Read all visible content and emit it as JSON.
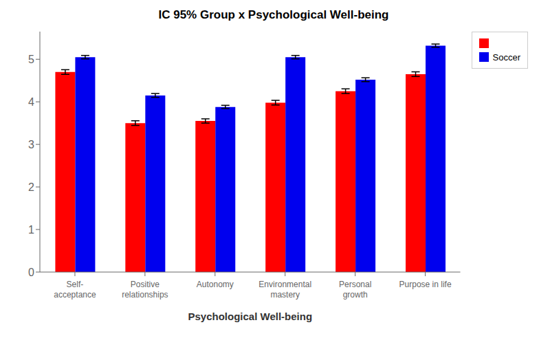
{
  "chart_data": {
    "type": "bar",
    "title": "IC 95% Group x Psychological Well-being",
    "xlabel": "Psychological Well-being",
    "categories": [
      "Self-\nacceptance",
      "Positive\nrelationships",
      "Autonomy",
      "Environmental\nmastery",
      "Personal\ngrowth",
      "Purpose in life"
    ],
    "series": [
      {
        "color": "#FF0000",
        "values": [
          4.7,
          3.5,
          3.55,
          3.98,
          4.25,
          4.65
        ],
        "errors": [
          0.055,
          0.055,
          0.05,
          0.055,
          0.055,
          0.055
        ]
      },
      {
        "name": "Soccer",
        "color": "#0000EE",
        "values": [
          5.05,
          4.15,
          3.88,
          5.05,
          4.52,
          5.32
        ],
        "errors": [
          0.04,
          0.045,
          0.038,
          0.04,
          0.045,
          0.038
        ]
      }
    ],
    "ylim": [
      0,
      5.65
    ],
    "yticks": [
      0,
      1,
      2,
      3,
      4,
      5
    ],
    "grid": false,
    "legend": "right"
  }
}
